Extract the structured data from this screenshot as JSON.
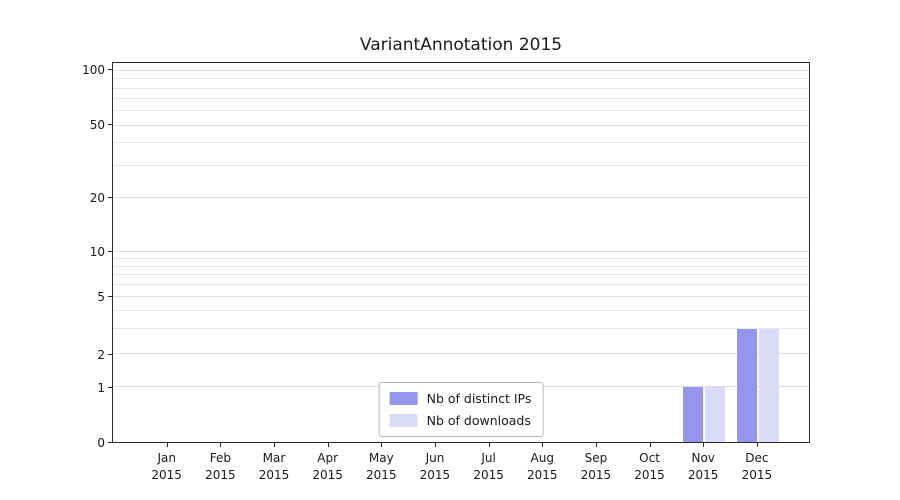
{
  "chart_data": {
    "type": "bar",
    "title": "VariantAnnotation 2015",
    "categories": [
      "Jan 2015",
      "Feb 2015",
      "Mar 2015",
      "Apr 2015",
      "May 2015",
      "Jun 2015",
      "Jul 2015",
      "Aug 2015",
      "Sep 2015",
      "Oct 2015",
      "Nov 2015",
      "Dec 2015"
    ],
    "series": [
      {
        "name": "Nb of distinct IPs",
        "color": "#9595ee",
        "values": [
          0,
          0,
          0,
          0,
          0,
          0,
          0,
          0,
          0,
          0,
          1,
          3
        ]
      },
      {
        "name": "Nb of downloads",
        "color": "#dbdbf8",
        "values": [
          0,
          0,
          0,
          0,
          0,
          0,
          0,
          0,
          0,
          0,
          1,
          3
        ]
      }
    ],
    "y_axis": {
      "scale": "log",
      "ticks": [
        0,
        1,
        2,
        5,
        10,
        20,
        50,
        100
      ],
      "range": [
        0,
        100
      ]
    },
    "xlabel": "",
    "ylabel": "",
    "grid": true,
    "legend_position": "bottom-center"
  },
  "colors": {
    "grid_minor": "#e8e8e8",
    "grid_major": "#dedede",
    "axis": "#2b2b2b",
    "text": "#1a1a1a"
  }
}
